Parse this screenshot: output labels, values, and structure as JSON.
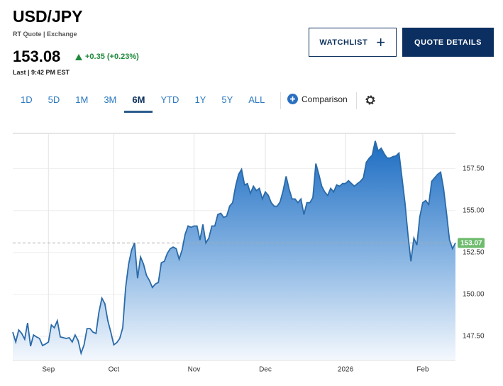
{
  "header": {
    "title": "USD/JPY",
    "subtitle": "RT Quote | Exchange",
    "price": "153.08",
    "change": "+0.35 (+0.23%)",
    "last": "Last | 9:42 PM EST"
  },
  "buttons": [
    "WATCHLIST",
    "QUOTE DETAILS"
  ],
  "tabs": [
    "1D",
    "5D",
    "1M",
    "3M",
    "6M",
    "YTD",
    "1Y",
    "5Y",
    "ALL"
  ],
  "active_tab": "6M",
  "comparison": "Comparison",
  "chart_data": {
    "type": "area",
    "color": "#2a6aa8",
    "values": [
      147.75,
      147.16,
      147.88,
      147.67,
      147.33,
      148.3,
      146.91,
      147.58,
      147.46,
      147.37,
      146.95,
      147.04,
      147.16,
      148.18,
      148.01,
      148.43,
      147.46,
      147.42,
      147.37,
      147.42,
      147.16,
      147.58,
      147.25,
      146.49,
      146.99,
      147.96,
      147.96,
      147.75,
      147.67,
      148.93,
      149.78,
      149.44,
      148.43,
      147.75,
      146.99,
      147.12,
      147.37,
      148.01,
      150.41,
      151.8,
      152.65,
      153.07,
      150.96,
      152.23,
      151.8,
      151.13,
      150.83,
      150.41,
      150.62,
      150.71,
      151.89,
      151.97,
      152.44,
      152.73,
      152.82,
      152.73,
      152.1,
      152.65,
      153.58,
      154.08,
      154.0,
      154.08,
      154.08,
      153.24,
      154.17,
      153.07,
      153.36,
      154.08,
      154.08,
      154.76,
      154.84,
      154.59,
      154.67,
      155.26,
      155.47,
      156.45,
      157.16,
      157.46,
      156.53,
      156.61,
      156.02,
      156.45,
      156.19,
      156.32,
      155.69,
      156.11,
      155.9,
      155.47,
      155.26,
      155.26,
      155.52,
      156.19,
      157.04,
      156.28,
      155.69,
      155.69,
      155.47,
      155.69,
      154.76,
      155.47,
      155.47,
      155.77,
      157.8,
      157.16,
      156.45,
      156.11,
      155.9,
      156.32,
      156.11,
      156.53,
      156.45,
      156.61,
      156.61,
      156.78,
      156.61,
      156.45,
      156.61,
      156.74,
      156.95,
      157.88,
      158.13,
      158.3,
      159.15,
      158.55,
      158.72,
      158.39,
      158.13,
      158.13,
      158.22,
      158.26,
      158.43,
      156.95,
      155.47,
      153.58,
      151.97,
      153.36,
      152.94,
      154.63,
      155.47,
      155.6,
      155.35,
      156.74,
      156.95,
      157.16,
      157.29,
      156.32,
      154.84,
      153.24,
      152.73,
      153.07
    ],
    "xlim": [
      0,
      149
    ],
    "xticks": [
      {
        "value": 12,
        "label": "Sep"
      },
      {
        "value": 34,
        "label": "Oct"
      },
      {
        "value": 61,
        "label": "Nov"
      },
      {
        "value": 85,
        "label": "Dec"
      },
      {
        "value": 112,
        "label": "2026"
      },
      {
        "value": 138,
        "label": "Feb"
      }
    ],
    "ylim": [
      146.06,
      159.6
    ],
    "yticks": [
      {
        "value": 147.5,
        "label": "147.50"
      },
      {
        "value": 150,
        "label": "150.00"
      },
      {
        "value": 152.5,
        "label": "152.50"
      },
      {
        "value": 155,
        "label": "155.00"
      },
      {
        "value": 157.5,
        "label": "157.50"
      }
    ],
    "grid": true,
    "last_badge_color": "#6dbb6d"
  }
}
